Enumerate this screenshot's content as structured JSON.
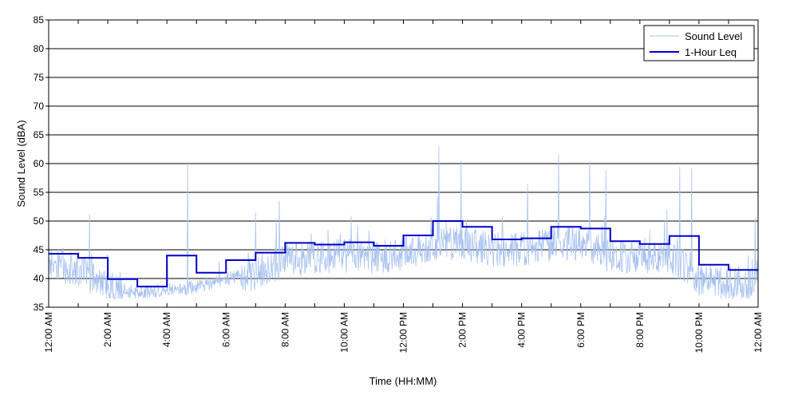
{
  "chart_data": {
    "type": "line",
    "title": "",
    "xlabel": "Time (HH:MM)",
    "ylabel": "Sound Level (dBA)",
    "ylim": [
      35,
      85
    ],
    "y_ticks": [
      "35",
      "40",
      "45",
      "50",
      "55",
      "60",
      "65",
      "70",
      "75",
      "80",
      "85"
    ],
    "xlim_hours": [
      0,
      24
    ],
    "x_tick_labels": [
      "12:00 AM",
      "2:00 AM",
      "4:00 AM",
      "6:00 AM",
      "8:00 AM",
      "10:00 AM",
      "12:00 PM",
      "2:00 PM",
      "4:00 PM",
      "6:00 PM",
      "8:00 PM",
      "10:00 PM",
      "12:00 AM"
    ],
    "grid": "horizontal",
    "legend_position": "top-right",
    "colors": {
      "sound_level": "#a8c2f0",
      "leq": "#0000cc",
      "grid": "#000000"
    },
    "series": [
      {
        "name": "Sound Level",
        "style": "thin-noisy",
        "hourly_baseline": [
          42.5,
          41.5,
          38.5,
          37.5,
          38.0,
          38.5,
          40.0,
          41.0,
          43.0,
          43.5,
          44.0,
          43.5,
          44.5,
          46.0,
          46.0,
          45.0,
          45.0,
          46.0,
          46.0,
          44.0,
          43.5,
          44.0,
          40.0,
          39.0
        ],
        "peaks": [
          {
            "x": 1.38,
            "y": 51.2
          },
          {
            "x": 4.7,
            "y": 60.3
          },
          {
            "x": 7.0,
            "y": 51.5
          },
          {
            "x": 7.8,
            "y": 53.5
          },
          {
            "x": 13.2,
            "y": 63.0
          },
          {
            "x": 13.95,
            "y": 60.5
          },
          {
            "x": 16.2,
            "y": 56.5
          },
          {
            "x": 17.25,
            "y": 61.6
          },
          {
            "x": 18.3,
            "y": 60.4
          },
          {
            "x": 18.85,
            "y": 58.8
          },
          {
            "x": 21.35,
            "y": 59.4
          },
          {
            "x": 21.75,
            "y": 59.2
          },
          {
            "x": 23.9,
            "y": 50.5
          }
        ]
      },
      {
        "name": "1-Hour Leq",
        "style": "step",
        "values": [
          44.3,
          43.6,
          39.9,
          38.6,
          44.0,
          41.0,
          43.2,
          44.5,
          46.2,
          45.9,
          46.3,
          45.7,
          47.5,
          50.0,
          49.0,
          46.8,
          47.0,
          49.0,
          48.7,
          46.5,
          46.0,
          47.4,
          42.4,
          41.5
        ]
      }
    ]
  }
}
